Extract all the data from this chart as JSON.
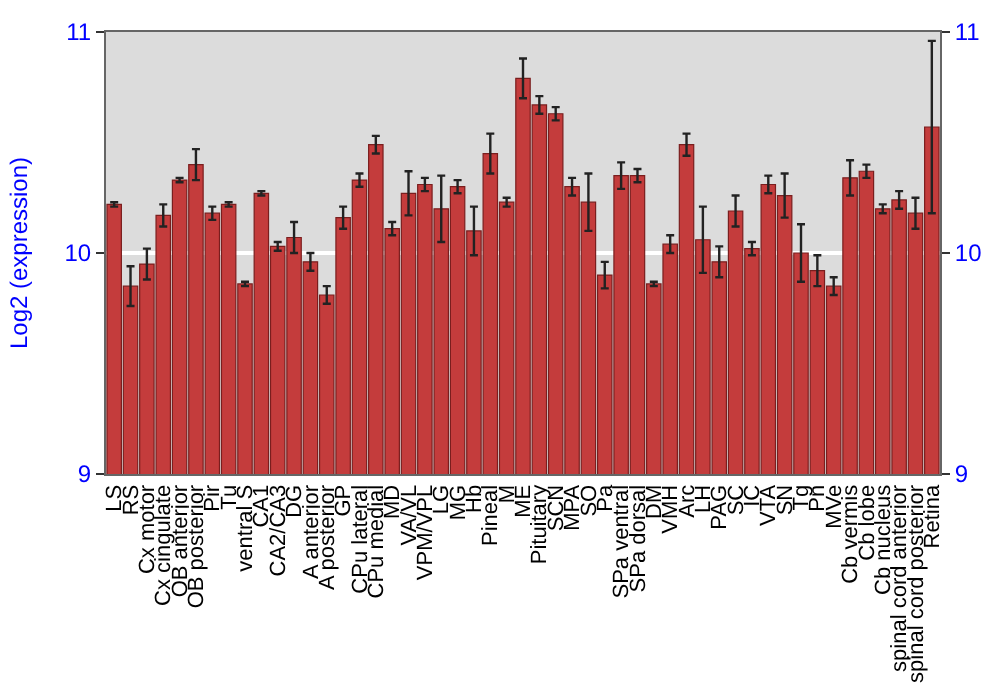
{
  "chart_data": {
    "type": "bar",
    "ylabel": "Log2 (expression)",
    "categories": [
      "LS",
      "RS",
      "Cx motor",
      "Cx cingulate",
      "OB anterior",
      "OB posterior",
      "Pir",
      "Tu",
      "ventral S",
      "CA1",
      "CA2/CA3",
      "DG",
      "A anterior",
      "A posterior",
      "GP",
      "CPu lateral",
      "CPu medial",
      "MD",
      "VA/VL",
      "VPM/VPL",
      "LG",
      "MG",
      "Hb",
      "Pineal",
      "M",
      "ME",
      "Pituitary",
      "SCN",
      "MPA",
      "SO",
      "Pa",
      "SPa ventral",
      "SPa dorsal",
      "DM",
      "VMH",
      "Arc",
      "LH",
      "PAG",
      "SC",
      "IC",
      "VTA",
      "SN",
      "Tg",
      "Pn",
      "MVe",
      "Cb vermis",
      "Cb lobe",
      "Cb nucleus",
      "spinal cord anterior",
      "spinal cord posterior",
      "Retina"
    ],
    "series": [
      {
        "color": "#c43c3c",
        "values": [
          10.22,
          9.85,
          9.95,
          10.17,
          10.33,
          10.4,
          10.18,
          10.22,
          9.86,
          10.27,
          10.03,
          10.07,
          9.96,
          9.81,
          10.16,
          10.33,
          10.49,
          10.11,
          10.27,
          10.31,
          10.2,
          10.3,
          10.1,
          10.45,
          10.23,
          10.79,
          10.67,
          10.63,
          10.3,
          10.23,
          9.9,
          10.35,
          10.35,
          9.86,
          10.04,
          10.49,
          10.06,
          9.96,
          10.19,
          10.02,
          10.31,
          10.26,
          10.0,
          9.92,
          9.85,
          10.34,
          10.37,
          10.2,
          10.24,
          10.18,
          10.57
        ],
        "errors": [
          0.01,
          0.09,
          0.07,
          0.05,
          0.01,
          0.07,
          0.03,
          0.01,
          0.01,
          0.01,
          0.02,
          0.07,
          0.04,
          0.04,
          0.05,
          0.03,
          0.04,
          0.03,
          0.1,
          0.03,
          0.15,
          0.03,
          0.11,
          0.09,
          0.02,
          0.09,
          0.04,
          0.03,
          0.04,
          0.13,
          0.06,
          0.06,
          0.03,
          0.01,
          0.04,
          0.05,
          0.15,
          0.07,
          0.07,
          0.03,
          0.04,
          0.1,
          0.13,
          0.07,
          0.04,
          0.08,
          0.03,
          0.02,
          0.04,
          0.07,
          0.39
        ]
      }
    ],
    "ylim": [
      9,
      11
    ],
    "yticks": [
      9,
      10,
      11
    ],
    "y2lim": [
      9,
      11
    ],
    "y2ticks": [
      9,
      10,
      11
    ],
    "grid": "y"
  }
}
